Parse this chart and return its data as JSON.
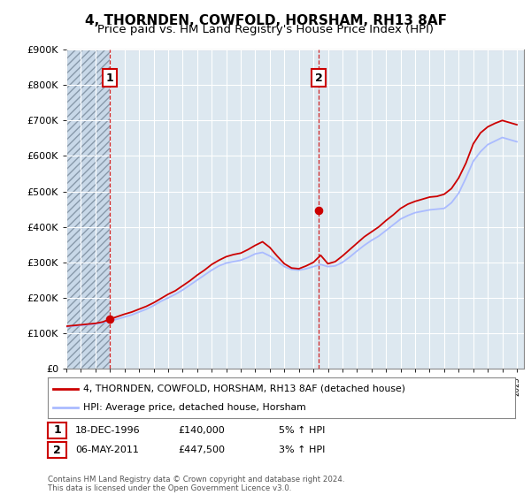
{
  "title": "4, THORNDEN, COWFOLD, HORSHAM, RH13 8AF",
  "subtitle": "Price paid vs. HM Land Registry's House Price Index (HPI)",
  "ylim": [
    0,
    900000
  ],
  "yticks": [
    0,
    100000,
    200000,
    300000,
    400000,
    500000,
    600000,
    700000,
    800000,
    900000
  ],
  "ytick_labels": [
    "£0",
    "£100K",
    "£200K",
    "£300K",
    "£400K",
    "£500K",
    "£600K",
    "£700K",
    "£800K",
    "£900K"
  ],
  "hpi_color": "#aabbff",
  "price_color": "#cc0000",
  "dot_color": "#cc0000",
  "vline_color": "#cc0000",
  "background_color": "#ffffff",
  "plot_bg_color": "#dde8f0",
  "grid_color": "#ffffff",
  "hatch_color": "#c8d8e8",
  "annotation1_year": 1996.97,
  "annotation1_price": 140000,
  "annotation2_year": 2011.37,
  "annotation2_price": 447500,
  "sale1_date": "18-DEC-1996",
  "sale1_price": "£140,000",
  "sale1_hpi": "5% ↑ HPI",
  "sale2_date": "06-MAY-2011",
  "sale2_price": "£447,500",
  "sale2_hpi": "3% ↑ HPI",
  "legend_label1": "4, THORNDEN, COWFOLD, HORSHAM, RH13 8AF (detached house)",
  "legend_label2": "HPI: Average price, detached house, Horsham",
  "footer": "Contains HM Land Registry data © Crown copyright and database right 2024.\nThis data is licensed under the Open Government Licence v3.0.",
  "xlim_start": 1994.0,
  "xlim_end": 2025.5,
  "hatch_end": 1997.0,
  "hpi_years": [
    1994.0,
    1994.5,
    1995.0,
    1995.5,
    1996.0,
    1996.5,
    1997.0,
    1997.5,
    1998.0,
    1998.5,
    1999.0,
    1999.5,
    2000.0,
    2000.5,
    2001.0,
    2001.5,
    2002.0,
    2002.5,
    2003.0,
    2003.5,
    2004.0,
    2004.5,
    2005.0,
    2005.5,
    2006.0,
    2006.5,
    2007.0,
    2007.5,
    2008.0,
    2008.5,
    2009.0,
    2009.5,
    2010.0,
    2010.5,
    2011.0,
    2011.5,
    2012.0,
    2012.5,
    2013.0,
    2013.5,
    2014.0,
    2014.5,
    2015.0,
    2015.5,
    2016.0,
    2016.5,
    2017.0,
    2017.5,
    2018.0,
    2018.5,
    2019.0,
    2019.5,
    2020.0,
    2020.5,
    2021.0,
    2021.5,
    2022.0,
    2022.5,
    2023.0,
    2023.5,
    2024.0,
    2024.5,
    2025.0
  ],
  "hpi_values": [
    118000,
    120000,
    122000,
    124000,
    126000,
    130000,
    135000,
    140000,
    146000,
    152000,
    160000,
    168000,
    178000,
    190000,
    200000,
    210000,
    222000,
    236000,
    250000,
    264000,
    278000,
    290000,
    298000,
    302000,
    306000,
    314000,
    324000,
    328000,
    318000,
    304000,
    288000,
    280000,
    278000,
    282000,
    288000,
    294000,
    288000,
    290000,
    300000,
    315000,
    332000,
    348000,
    362000,
    374000,
    390000,
    406000,
    422000,
    432000,
    440000,
    444000,
    448000,
    450000,
    452000,
    468000,
    495000,
    538000,
    585000,
    612000,
    632000,
    642000,
    652000,
    646000,
    640000
  ],
  "price_years": [
    1994.0,
    1994.5,
    1995.0,
    1995.5,
    1996.0,
    1996.5,
    1997.0,
    1997.5,
    1998.0,
    1998.5,
    1999.0,
    1999.5,
    2000.0,
    2000.5,
    2001.0,
    2001.5,
    2002.0,
    2002.5,
    2003.0,
    2003.5,
    2004.0,
    2004.5,
    2005.0,
    2005.5,
    2006.0,
    2006.5,
    2007.0,
    2007.5,
    2008.0,
    2008.5,
    2009.0,
    2009.5,
    2010.0,
    2010.5,
    2011.0,
    2011.5,
    2012.0,
    2012.5,
    2013.0,
    2013.5,
    2014.0,
    2014.5,
    2015.0,
    2015.5,
    2016.0,
    2016.5,
    2017.0,
    2017.5,
    2018.0,
    2018.5,
    2019.0,
    2019.5,
    2020.0,
    2020.5,
    2021.0,
    2021.5,
    2022.0,
    2022.5,
    2023.0,
    2023.5,
    2024.0,
    2024.5,
    2025.0
  ],
  "price_values": [
    120000,
    122000,
    124000,
    126000,
    128000,
    132000,
    140000,
    147000,
    154000,
    160000,
    168000,
    176000,
    186000,
    198000,
    210000,
    220000,
    234000,
    248000,
    264000,
    278000,
    294000,
    306000,
    316000,
    322000,
    326000,
    336000,
    348000,
    358000,
    342000,
    318000,
    296000,
    284000,
    282000,
    290000,
    300000,
    320000,
    296000,
    302000,
    318000,
    336000,
    354000,
    372000,
    386000,
    400000,
    418000,
    434000,
    452000,
    464000,
    472000,
    478000,
    484000,
    486000,
    492000,
    508000,
    538000,
    580000,
    634000,
    665000,
    682000,
    692000,
    700000,
    694000,
    688000
  ]
}
